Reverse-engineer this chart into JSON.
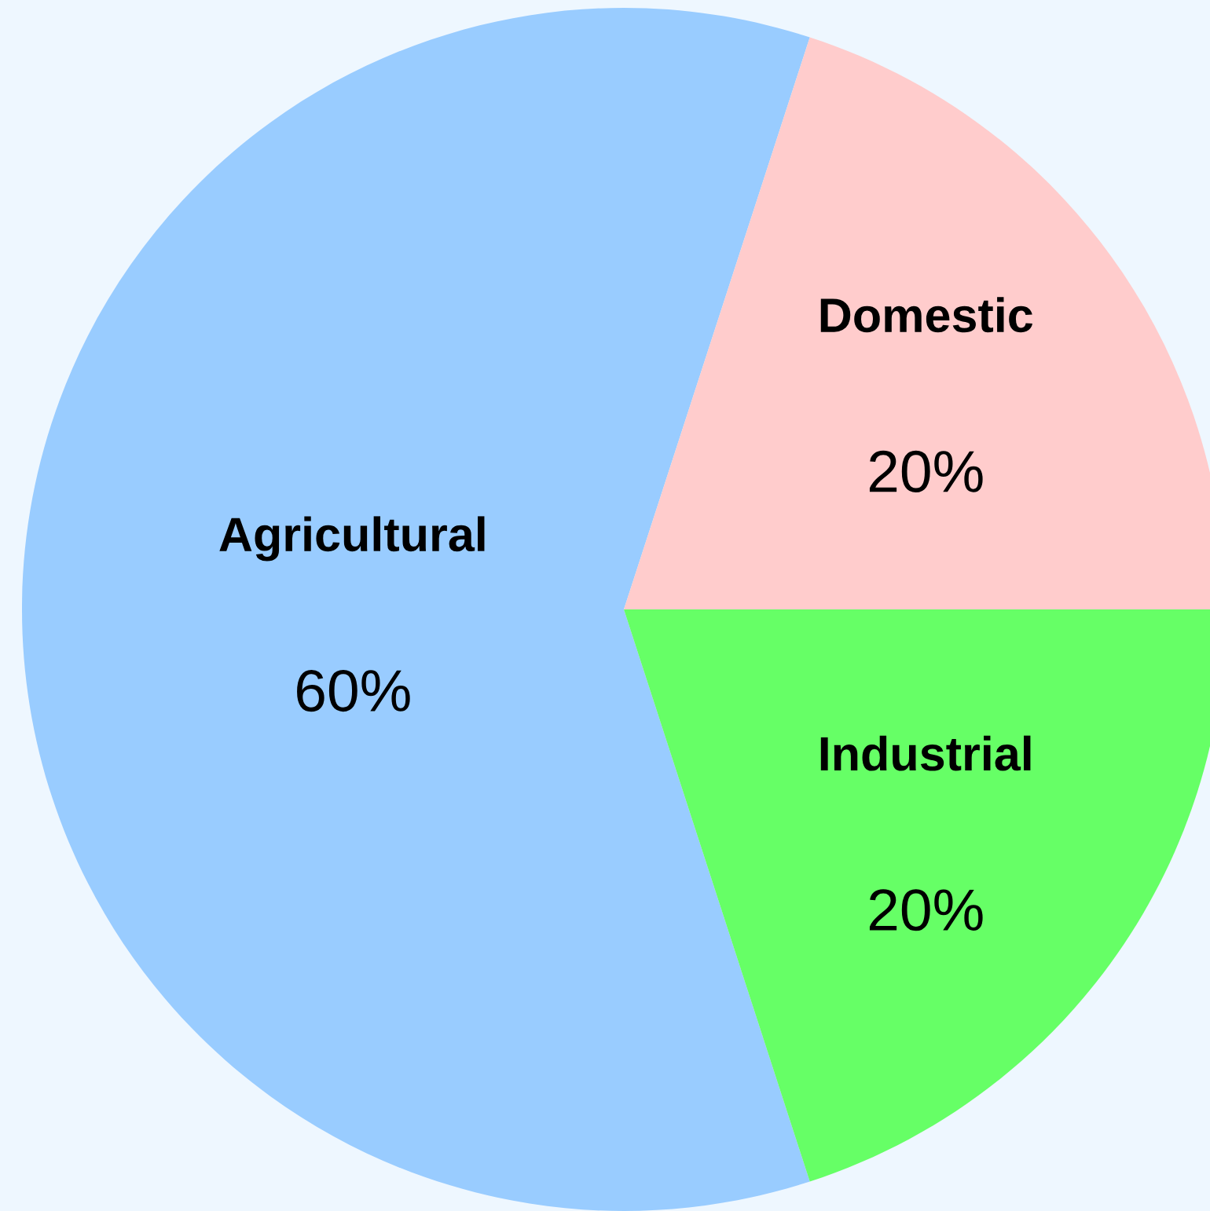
{
  "chart_data": {
    "type": "pie",
    "categories": [
      "Agricultural",
      "Industrial",
      "Domestic"
    ],
    "values": [
      60,
      20,
      20
    ],
    "colors": [
      "#99ccff",
      "#66ff66",
      "#ffcccc"
    ],
    "value_labels": [
      "60%",
      "20%",
      "20%"
    ]
  }
}
